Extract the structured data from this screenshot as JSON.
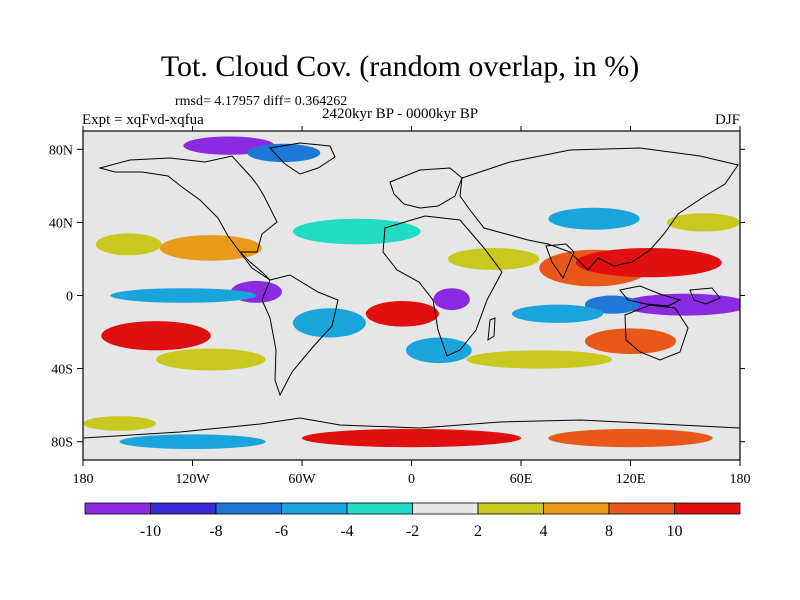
{
  "header": {
    "title": "Tot. Cloud Cov. (random overlap, in %)",
    "stats": "rmsd= 4.17957 diff= 0.364262",
    "experiment": "Expt = xqFvd-xqfua",
    "period": "2420kyr BP - 0000kyr BP",
    "season": "DJF"
  },
  "axes": {
    "lon_ticks": [
      {
        "value": -180,
        "label": "180"
      },
      {
        "value": -120,
        "label": "120W"
      },
      {
        "value": -60,
        "label": "60W"
      },
      {
        "value": 0,
        "label": "0"
      },
      {
        "value": 60,
        "label": "60E"
      },
      {
        "value": 120,
        "label": "120E"
      },
      {
        "value": 180,
        "label": "180"
      }
    ],
    "lat_ticks": [
      {
        "value": 80,
        "label": "80N"
      },
      {
        "value": 40,
        "label": "40N"
      },
      {
        "value": 0,
        "label": "0"
      },
      {
        "value": -40,
        "label": "40S"
      },
      {
        "value": -80,
        "label": "80S"
      }
    ],
    "lon_range": [
      -180,
      180
    ],
    "lat_range": [
      -90,
      90
    ]
  },
  "colorbar": {
    "levels": [
      -10,
      -8,
      -6,
      -4,
      -2,
      2,
      4,
      8,
      10
    ],
    "labels": [
      "-10",
      "-8",
      "-6",
      "-4",
      "-2",
      "2",
      "4",
      "8",
      "10"
    ],
    "colors": [
      "#8a2be2",
      "#3a2ad8",
      "#1f77d8",
      "#19a4dc",
      "#20dcc4",
      "#e6e6e6",
      "#c8c81e",
      "#e89a1a",
      "#e8581a",
      "#e01010"
    ]
  },
  "map_data": {
    "background_color": "#e6e6e6",
    "anomaly_regions": [
      {
        "lon": -110,
        "lat": 26,
        "rlon": 28,
        "rlat": 7,
        "bin": 7
      },
      {
        "lon": -155,
        "lat": 28,
        "rlon": 18,
        "rlat": 6,
        "bin": 6
      },
      {
        "lon": -85,
        "lat": 2,
        "rlon": 14,
        "rlat": 6,
        "bin": 0
      },
      {
        "lon": -125,
        "lat": 0,
        "rlon": 40,
        "rlat": 4,
        "bin": 3
      },
      {
        "lon": -140,
        "lat": -22,
        "rlon": 30,
        "rlat": 8,
        "bin": 9
      },
      {
        "lon": -110,
        "lat": -35,
        "rlon": 30,
        "rlat": 6,
        "bin": 6
      },
      {
        "lon": -45,
        "lat": -15,
        "rlon": 20,
        "rlat": 8,
        "bin": 3
      },
      {
        "lon": -30,
        "lat": 35,
        "rlon": 35,
        "rlat": 7,
        "bin": 4
      },
      {
        "lon": -5,
        "lat": -10,
        "rlon": 20,
        "rlat": 7,
        "bin": 9
      },
      {
        "lon": 22,
        "lat": -2,
        "rlon": 10,
        "rlat": 6,
        "bin": 0
      },
      {
        "lon": 15,
        "lat": -30,
        "rlon": 18,
        "rlat": 7,
        "bin": 3
      },
      {
        "lon": 45,
        "lat": 20,
        "rlon": 25,
        "rlat": 6,
        "bin": 6
      },
      {
        "lon": 100,
        "lat": 15,
        "rlon": 30,
        "rlat": 10,
        "bin": 8
      },
      {
        "lon": 130,
        "lat": 18,
        "rlon": 40,
        "rlat": 8,
        "bin": 9
      },
      {
        "lon": 150,
        "lat": -5,
        "rlon": 35,
        "rlat": 6,
        "bin": 0
      },
      {
        "lon": 110,
        "lat": -5,
        "rlon": 15,
        "rlat": 5,
        "bin": 2
      },
      {
        "lon": 80,
        "lat": -10,
        "rlon": 25,
        "rlat": 5,
        "bin": 3
      },
      {
        "lon": 120,
        "lat": -25,
        "rlon": 25,
        "rlat": 7,
        "bin": 8
      },
      {
        "lon": 70,
        "lat": -35,
        "rlon": 40,
        "rlat": 5,
        "bin": 6
      },
      {
        "lon": 100,
        "lat": 42,
        "rlon": 25,
        "rlat": 6,
        "bin": 3
      },
      {
        "lon": -100,
        "lat": 82,
        "rlon": 25,
        "rlat": 5,
        "bin": 0
      },
      {
        "lon": -70,
        "lat": 78,
        "rlon": 20,
        "rlat": 5,
        "bin": 2
      },
      {
        "lon": 0,
        "lat": -78,
        "rlon": 60,
        "rlat": 5,
        "bin": 9
      },
      {
        "lon": -120,
        "lat": -80,
        "rlon": 40,
        "rlat": 4,
        "bin": 3
      },
      {
        "lon": 120,
        "lat": -78,
        "rlon": 45,
        "rlat": 5,
        "bin": 8
      },
      {
        "lon": -160,
        "lat": -70,
        "rlon": 20,
        "rlat": 4,
        "bin": 6
      },
      {
        "lon": 160,
        "lat": 40,
        "rlon": 20,
        "rlat": 5,
        "bin": 6
      }
    ]
  }
}
